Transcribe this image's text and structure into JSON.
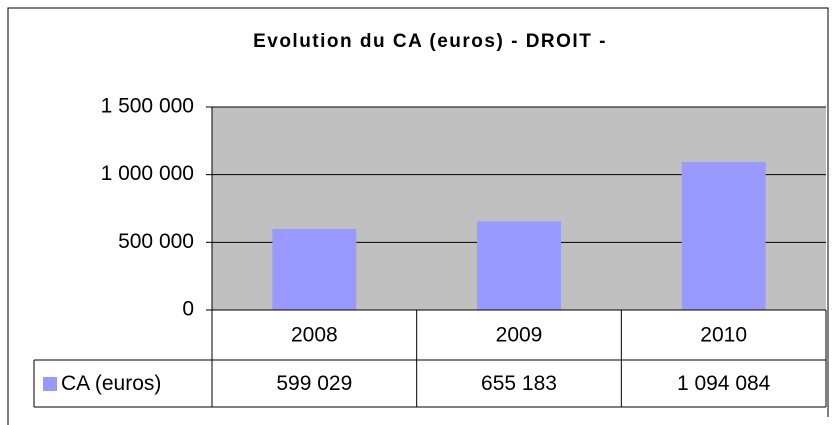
{
  "chart_data": {
    "type": "bar",
    "title": "Evolution du CA (euros) - DROIT -",
    "categories": [
      "2008",
      "2009",
      "2010"
    ],
    "series": [
      {
        "name": "CA (euros)",
        "color": "#9999ff",
        "values": [
          599029,
          655183,
          1094084
        ],
        "value_labels": [
          "599 029",
          "655 183",
          "1 094 084"
        ]
      }
    ],
    "ylim": [
      0,
      1500000
    ],
    "yticks": [
      0,
      {
        "value": 500000,
        "label": "500 000"
      },
      {
        "value": 1000000,
        "label": "1 000 000"
      },
      {
        "value": 1500000,
        "label": "1 500 000"
      }
    ],
    "grid": true,
    "plot_background": "#c0c0c0"
  }
}
